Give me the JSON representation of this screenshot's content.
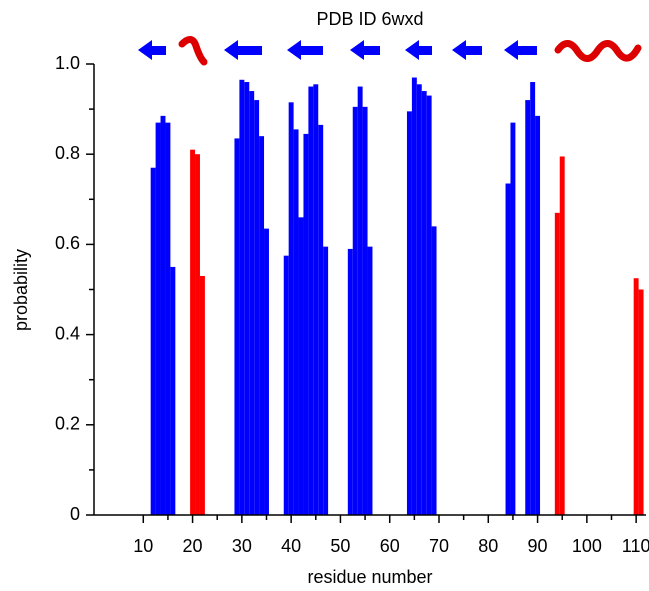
{
  "chart_data": {
    "type": "bar",
    "title": "PDB ID 6wxd",
    "x_label": "residue number",
    "y_label": "probability",
    "series": [
      {
        "color": "#0000ff",
        "x": [
          12,
          13,
          14,
          15,
          16,
          29,
          30,
          31,
          32,
          33,
          34,
          35,
          39,
          40,
          41,
          42,
          43,
          44,
          45,
          46,
          47,
          52,
          53,
          54,
          55,
          56,
          64,
          65,
          66,
          67,
          68,
          69,
          84,
          85,
          88,
          89,
          90
        ],
        "values": [
          0.77,
          0.87,
          0.885,
          0.87,
          0.55,
          0.835,
          0.965,
          0.96,
          0.94,
          0.92,
          0.84,
          0.635,
          0.575,
          0.915,
          0.855,
          0.66,
          0.845,
          0.95,
          0.955,
          0.865,
          0.595,
          0.59,
          0.905,
          0.95,
          0.905,
          0.595,
          0.895,
          0.97,
          0.955,
          0.94,
          0.93,
          0.64,
          0.735,
          0.87,
          0.92,
          0.96,
          0.885
        ]
      },
      {
        "color": "#ff0000",
        "x": [
          20,
          21,
          22,
          94,
          95,
          110,
          111
        ],
        "values": [
          0.81,
          0.8,
          0.53,
          0.67,
          0.795,
          0.525,
          0.5
        ]
      }
    ],
    "xlim": [
      0,
      112
    ],
    "xticks": [
      10,
      20,
      30,
      40,
      50,
      60,
      70,
      80,
      90,
      100,
      110
    ],
    "ylim": [
      0,
      1
    ],
    "yticks": [
      0,
      0.2,
      0.4,
      0.6,
      0.8,
      {
        "value": 1,
        "label": "1.0"
      }
    ]
  }
}
